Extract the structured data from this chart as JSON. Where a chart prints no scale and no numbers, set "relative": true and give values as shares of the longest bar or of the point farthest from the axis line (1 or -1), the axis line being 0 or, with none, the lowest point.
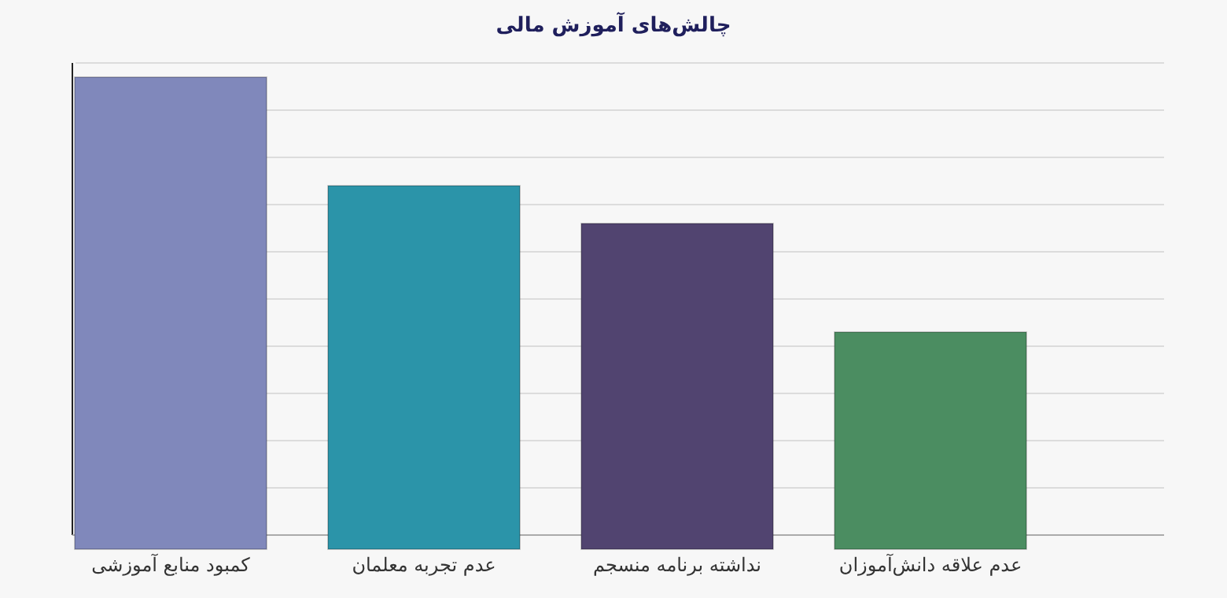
{
  "chart_data": {
    "type": "bar",
    "title": "چالش‌های آموزش مالی",
    "categories": [
      "کمبود منابع آموزشی",
      "عدم تجربه معلمان",
      "نداشته برنامه منسجم",
      "عدم علاقه دانش‌آموزان"
    ],
    "values": [
      1,
      0.77,
      0.69,
      0.46
    ],
    "colors": [
      "#8088bb",
      "#2b94a9",
      "#514470",
      "#4b8d61"
    ],
    "relative": true,
    "grid": true
  }
}
